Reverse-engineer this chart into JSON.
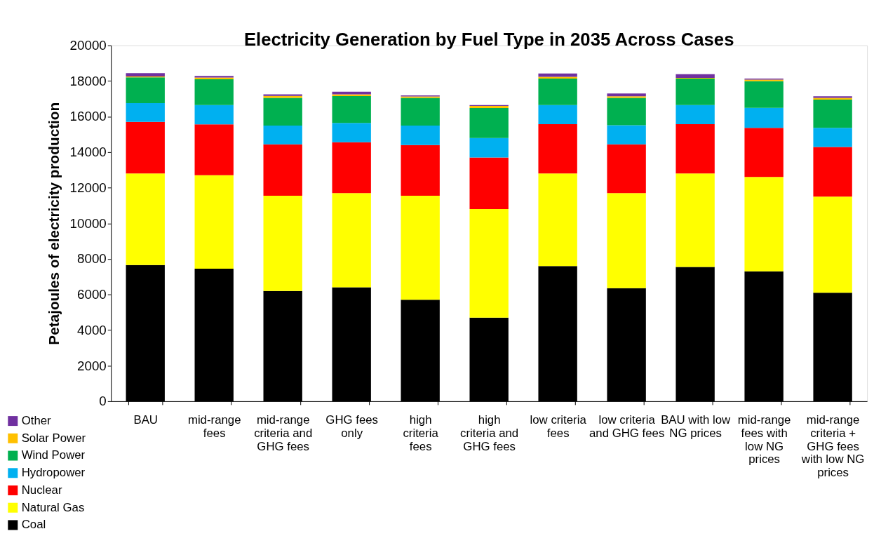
{
  "chart_data": {
    "type": "bar",
    "title": "Electricity Generation by Fuel Type in 2035 Across Cases",
    "ylabel": "Petajoules of electricity production",
    "categories": [
      "BAU",
      "mid-range fees",
      "mid-range criteria and GHG fees",
      "GHG fees only",
      "high criteria fees",
      "high criteria and GHG fees",
      "low criteria fees",
      "low criteria and GHG fees",
      "BAU with low NG prices",
      "mid-range fees with low NG prices",
      "mid-range criteria + GHG fees with low NG prices"
    ],
    "stacked": true,
    "series": [
      {
        "name": "Coal",
        "color": "#000000",
        "values": [
          7650,
          7450,
          6200,
          6400,
          5700,
          4700,
          7600,
          6350,
          7550,
          7300,
          6100
        ]
      },
      {
        "name": "Natural Gas",
        "color": "#ffff00",
        "values": [
          5150,
          5250,
          5350,
          5300,
          5850,
          6100,
          5200,
          5350,
          5250,
          5300,
          5400
        ]
      },
      {
        "name": "Nuclear",
        "color": "#ff0000",
        "values": [
          2900,
          2860,
          2890,
          2850,
          2850,
          2900,
          2770,
          2740,
          2770,
          2760,
          2790
        ]
      },
      {
        "name": "Hydropower",
        "color": "#00b0f0",
        "values": [
          1050,
          1080,
          1050,
          1090,
          1090,
          1090,
          1070,
          1070,
          1070,
          1130,
          1070
        ]
      },
      {
        "name": "Wind Power",
        "color": "#00b050",
        "values": [
          1450,
          1450,
          1560,
          1510,
          1560,
          1690,
          1490,
          1540,
          1490,
          1490,
          1590
        ]
      },
      {
        "name": "Solar Power",
        "color": "#ffc000",
        "values": [
          50,
          100,
          110,
          90,
          80,
          110,
          100,
          90,
          40,
          90,
          100
        ]
      },
      {
        "name": "Other",
        "color": "#7030a0",
        "values": [
          190,
          90,
          80,
          150,
          60,
          50,
          190,
          150,
          210,
          60,
          90
        ]
      }
    ],
    "ylim": [
      0,
      20000
    ],
    "yticks": [
      0,
      2000,
      4000,
      6000,
      8000,
      10000,
      12000,
      14000,
      16000,
      18000,
      20000
    ],
    "grid": false,
    "legend": "bottom left"
  }
}
